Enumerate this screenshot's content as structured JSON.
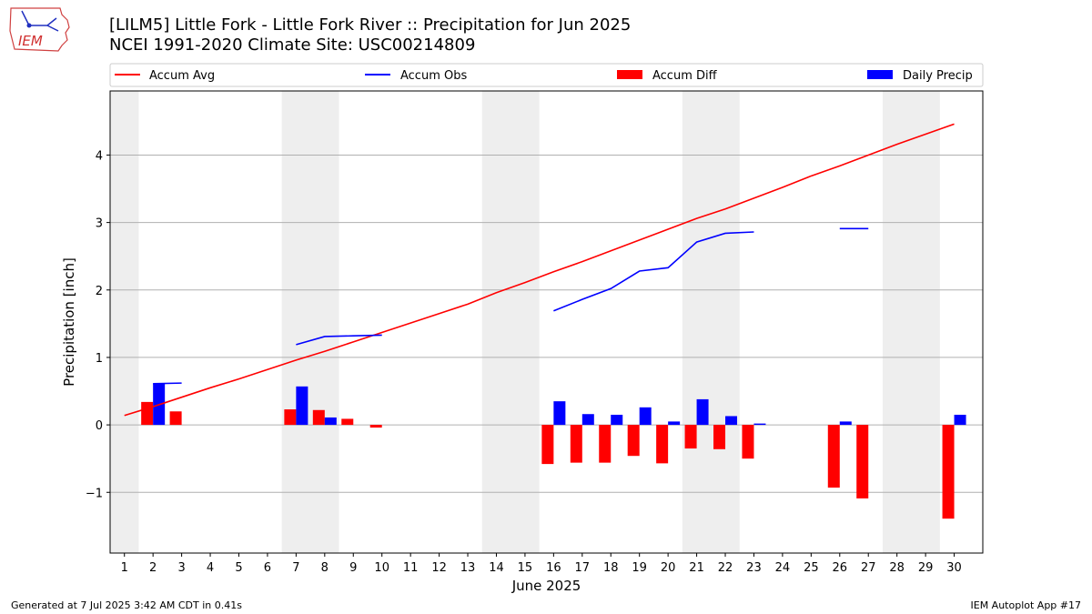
{
  "header": {
    "title_line1": "[LILM5] Little Fork - Little Fork River :: Precipitation for Jun 2025",
    "title_line2": "NCEI 1991-2020 Climate Site: USC00214809"
  },
  "logo": {
    "text": "IEM"
  },
  "footer": {
    "left": "Generated at 7 Jul 2025 3:42 AM CDT in 0.41s",
    "right": "IEM Autoplot App #17"
  },
  "colors": {
    "avg": "#ff0000",
    "obs": "#0000ff",
    "diff": "#ff0000",
    "daily": "#0000ff",
    "weekend": "#eeeeee",
    "grid": "#b0b0b0"
  },
  "chart_data": {
    "type": "bar",
    "xlabel": "June 2025",
    "ylabel": "Precipitation [inch]",
    "xlim": [
      0.5,
      31
    ],
    "ylim": [
      -1.9,
      4.95
    ],
    "x_ticks": [
      1,
      2,
      3,
      4,
      5,
      6,
      7,
      8,
      9,
      10,
      11,
      12,
      13,
      14,
      15,
      16,
      17,
      18,
      19,
      20,
      21,
      22,
      23,
      24,
      25,
      26,
      27,
      28,
      29,
      30
    ],
    "y_ticks": [
      -1,
      0,
      1,
      2,
      3,
      4
    ],
    "y_tick_labels": [
      "−1",
      "0",
      "1",
      "2",
      "3",
      "4"
    ],
    "grid": "horizontal",
    "legend_position": "top",
    "legend": [
      "Accum Avg",
      "Accum Obs",
      "Accum Diff",
      "Daily Precip"
    ],
    "weekend_bands": [
      [
        0.5,
        1.5
      ],
      [
        6.5,
        8.5
      ],
      [
        13.5,
        15.5
      ],
      [
        20.5,
        22.5
      ],
      [
        27.5,
        29.5
      ]
    ],
    "accum_avg": {
      "name": "Accum Avg",
      "x": [
        1,
        2,
        3,
        4,
        5,
        6,
        7,
        8,
        9,
        10,
        11,
        12,
        13,
        14,
        15,
        16,
        17,
        18,
        19,
        20,
        21,
        22,
        23,
        24,
        25,
        26,
        27,
        28,
        29,
        30
      ],
      "values": [
        0.14,
        0.27,
        0.41,
        0.55,
        0.68,
        0.82,
        0.96,
        1.09,
        1.23,
        1.37,
        1.51,
        1.65,
        1.79,
        1.96,
        2.11,
        2.27,
        2.42,
        2.58,
        2.74,
        2.9,
        3.06,
        3.2,
        3.36,
        3.52,
        3.69,
        3.84,
        4.0,
        4.16,
        4.31,
        4.46
      ]
    },
    "accum_obs": {
      "name": "Accum Obs",
      "segments": [
        {
          "x": [
            2,
            3
          ],
          "values": [
            0.61,
            0.62
          ]
        },
        {
          "x": [
            7,
            8,
            9,
            10
          ],
          "values": [
            1.19,
            1.31,
            1.32,
            1.33
          ]
        },
        {
          "x": [
            16,
            17,
            18,
            19,
            20,
            21,
            22,
            23
          ],
          "values": [
            1.69,
            1.86,
            2.02,
            2.28,
            2.33,
            2.71,
            2.84,
            2.86
          ]
        },
        {
          "x": [
            26,
            27
          ],
          "values": [
            2.91,
            2.91
          ]
        }
      ]
    },
    "accum_diff": {
      "name": "Accum Diff",
      "x": [
        2,
        3,
        7,
        8,
        9,
        10,
        16,
        17,
        18,
        19,
        20,
        21,
        22,
        23,
        26,
        27,
        30
      ],
      "values": [
        0.34,
        0.2,
        0.23,
        0.22,
        0.09,
        -0.04,
        -0.58,
        -0.56,
        -0.56,
        -0.46,
        -0.57,
        -0.35,
        -0.36,
        -0.5,
        -0.93,
        -1.09,
        -1.39
      ]
    },
    "daily_precip": {
      "name": "Daily Precip",
      "x": [
        2,
        7,
        8,
        16,
        17,
        18,
        19,
        20,
        21,
        22,
        23,
        26,
        30
      ],
      "values": [
        0.61,
        0.57,
        0.11,
        0.35,
        0.16,
        0.15,
        0.26,
        0.05,
        0.38,
        0.13,
        0.02,
        0.05,
        0.15
      ]
    }
  }
}
